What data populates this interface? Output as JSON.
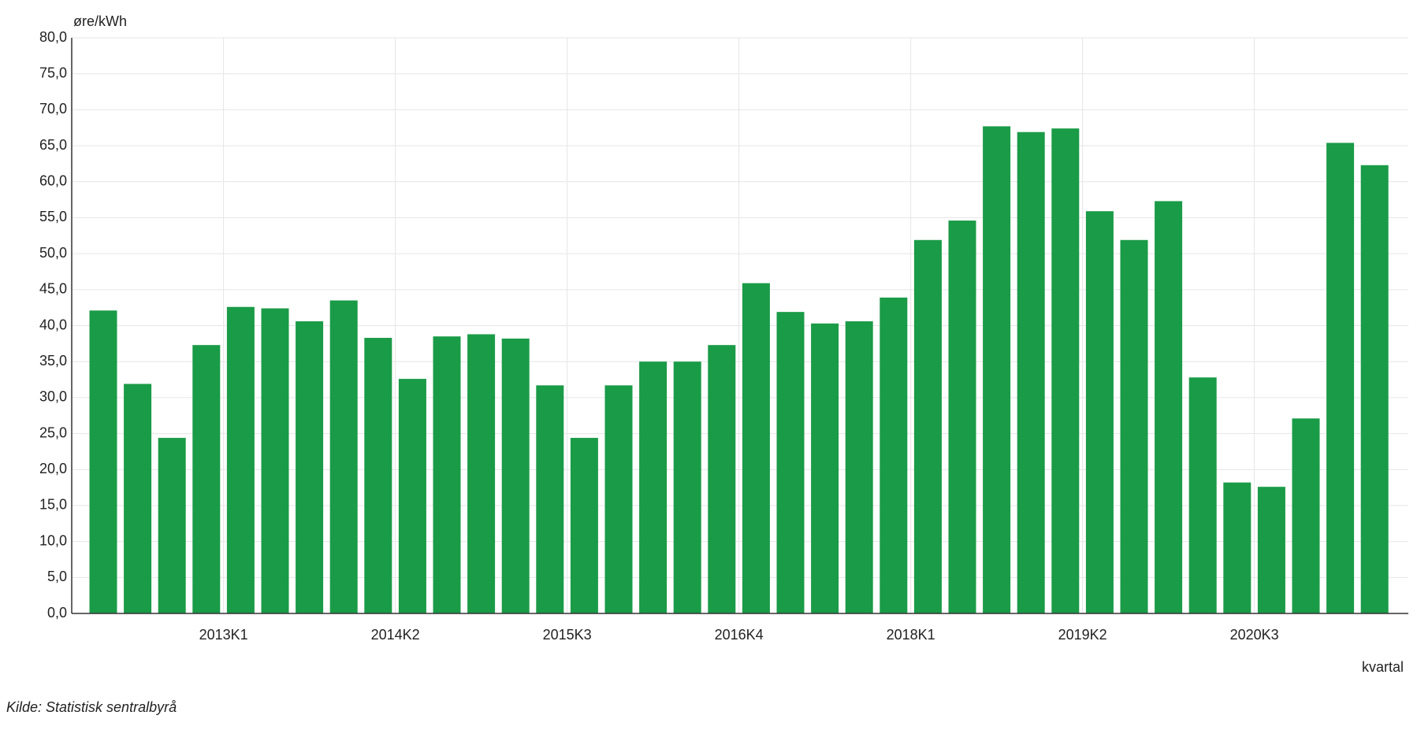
{
  "chart_data": {
    "type": "bar",
    "y_label": "øre/kWh",
    "x_label": "kvartal",
    "source": "Kilde:  Statistisk sentralbyrå",
    "categories": [
      null,
      null,
      null,
      null,
      "2013K1",
      null,
      null,
      null,
      null,
      "2014K2",
      null,
      null,
      null,
      null,
      "2015K3",
      null,
      null,
      null,
      null,
      "2016K4",
      null,
      null,
      null,
      null,
      "2018K1",
      null,
      null,
      null,
      null,
      "2019K2",
      null,
      null,
      null,
      null,
      "2020K3",
      null,
      null,
      null
    ],
    "values": [
      42.1,
      31.9,
      24.4,
      37.3,
      42.6,
      42.4,
      40.6,
      43.5,
      38.3,
      32.6,
      38.5,
      38.8,
      38.2,
      31.7,
      24.4,
      31.7,
      35.0,
      35.0,
      37.3,
      45.9,
      41.9,
      40.3,
      40.6,
      43.9,
      51.9,
      54.6,
      67.7,
      66.9,
      67.4,
      55.9,
      51.9,
      57.3,
      32.8,
      18.2,
      17.6,
      27.1,
      65.4,
      62.3
    ],
    "color": "#1a9b47",
    "ylim": [
      0,
      80
    ],
    "yticks": [
      {
        "value": 0,
        "label": "0,0"
      },
      {
        "value": 5,
        "label": "5,0"
      },
      {
        "value": 10,
        "label": "10,0"
      },
      {
        "value": 15,
        "label": "15,0"
      },
      {
        "value": 20,
        "label": "20,0"
      },
      {
        "value": 25,
        "label": "25,0"
      },
      {
        "value": 30,
        "label": "30,0"
      },
      {
        "value": 35,
        "label": "35,0"
      },
      {
        "value": 40,
        "label": "40,0"
      },
      {
        "value": 45,
        "label": "45,0"
      },
      {
        "value": 50,
        "label": "50,0"
      },
      {
        "value": 55,
        "label": "55,0"
      },
      {
        "value": 60,
        "label": "60,0"
      },
      {
        "value": 65,
        "label": "65,0"
      },
      {
        "value": 70,
        "label": "70,0"
      },
      {
        "value": 75,
        "label": "75,0"
      },
      {
        "value": 80,
        "label": "80,0"
      }
    ],
    "grid": true
  }
}
